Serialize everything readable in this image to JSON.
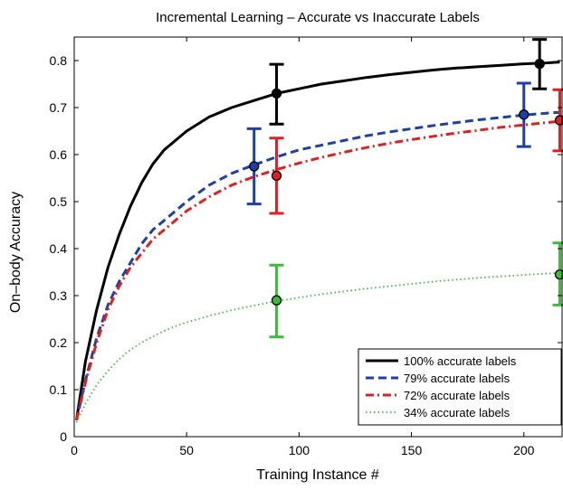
{
  "chart_data": {
    "type": "line",
    "title": "Incremental Learning – Accurate vs Inaccurate Labels",
    "xlabel": "Training Instance #",
    "ylabel": "On–body Accuracy",
    "xlim": [
      0,
      217
    ],
    "ylim": [
      0,
      0.85
    ],
    "xticks": [
      0,
      50,
      100,
      150,
      200
    ],
    "yticks": [
      0,
      0.1,
      0.2,
      0.3,
      0.4,
      0.5,
      0.6,
      0.7,
      0.8
    ],
    "xtick_labels": [
      "0",
      "50",
      "100",
      "150",
      "200"
    ],
    "ytick_labels": [
      "0",
      "0.1",
      "0.2",
      "0.3",
      "0.4",
      "0.5",
      "0.6",
      "0.7",
      "0.8"
    ],
    "grid": false,
    "legend_position": "bottom-right",
    "series": [
      {
        "name": "100% accurate labels",
        "color": "#000000",
        "dash": "solid",
        "curve_x": [
          1,
          5,
          10,
          15,
          20,
          25,
          30,
          35,
          40,
          45,
          50,
          60,
          70,
          80,
          90,
          100,
          110,
          120,
          130,
          140,
          150,
          160,
          170,
          180,
          190,
          200,
          210,
          216
        ],
        "curve_y": [
          0.035,
          0.16,
          0.27,
          0.36,
          0.43,
          0.49,
          0.54,
          0.58,
          0.61,
          0.63,
          0.65,
          0.68,
          0.7,
          0.715,
          0.73,
          0.74,
          0.75,
          0.757,
          0.764,
          0.77,
          0.775,
          0.78,
          0.784,
          0.787,
          0.79,
          0.793,
          0.795,
          0.797
        ],
        "points": [
          {
            "x": 90,
            "y": 0.73,
            "err_low": 0.665,
            "err_high": 0.792
          },
          {
            "x": 207,
            "y": 0.793,
            "err_low": 0.74,
            "err_high": 0.845
          }
        ]
      },
      {
        "name": "79% accurate labels",
        "color": "#1c3fa8",
        "dash": "dashed",
        "curve_x": [
          1,
          5,
          10,
          15,
          20,
          25,
          30,
          35,
          40,
          45,
          50,
          60,
          70,
          80,
          90,
          100,
          110,
          120,
          130,
          140,
          150,
          160,
          170,
          180,
          190,
          200,
          210,
          216
        ],
        "curve_y": [
          0.035,
          0.12,
          0.21,
          0.28,
          0.33,
          0.37,
          0.41,
          0.44,
          0.46,
          0.48,
          0.5,
          0.535,
          0.56,
          0.578,
          0.595,
          0.61,
          0.62,
          0.63,
          0.64,
          0.648,
          0.655,
          0.662,
          0.668,
          0.674,
          0.679,
          0.684,
          0.688,
          0.69
        ],
        "points": [
          {
            "x": 80,
            "y": 0.575,
            "err_low": 0.495,
            "err_high": 0.655
          },
          {
            "x": 200,
            "y": 0.685,
            "err_low": 0.617,
            "err_high": 0.752
          }
        ]
      },
      {
        "name": "72% accurate labels",
        "color": "#e02020",
        "dash": "dashdot",
        "curve_x": [
          1,
          5,
          10,
          15,
          20,
          25,
          30,
          35,
          40,
          45,
          50,
          60,
          70,
          80,
          90,
          100,
          110,
          120,
          130,
          140,
          150,
          160,
          170,
          180,
          190,
          200,
          210,
          216
        ],
        "curve_y": [
          0.035,
          0.115,
          0.2,
          0.27,
          0.32,
          0.36,
          0.39,
          0.42,
          0.44,
          0.46,
          0.48,
          0.51,
          0.535,
          0.553,
          0.568,
          0.582,
          0.594,
          0.605,
          0.615,
          0.624,
          0.632,
          0.639,
          0.646,
          0.652,
          0.658,
          0.663,
          0.668,
          0.671
        ],
        "points": [
          {
            "x": 90,
            "y": 0.555,
            "err_low": 0.475,
            "err_high": 0.635
          },
          {
            "x": 216,
            "y": 0.673,
            "err_low": 0.608,
            "err_high": 0.738
          }
        ]
      },
      {
        "name": "34% accurate labels",
        "color": "#3dbb3d",
        "dash": "dotted",
        "curve_x": [
          1,
          5,
          10,
          15,
          20,
          25,
          30,
          35,
          40,
          45,
          50,
          60,
          70,
          80,
          90,
          100,
          110,
          120,
          130,
          140,
          150,
          160,
          170,
          180,
          190,
          200,
          210,
          216
        ],
        "curve_y": [
          0.03,
          0.07,
          0.11,
          0.14,
          0.165,
          0.185,
          0.2,
          0.213,
          0.225,
          0.235,
          0.243,
          0.257,
          0.269,
          0.279,
          0.288,
          0.296,
          0.303,
          0.309,
          0.315,
          0.32,
          0.325,
          0.33,
          0.334,
          0.338,
          0.341,
          0.344,
          0.347,
          0.348
        ],
        "points": [
          {
            "x": 90,
            "y": 0.29,
            "err_low": 0.212,
            "err_high": 0.365
          },
          {
            "x": 216,
            "y": 0.345,
            "err_low": 0.28,
            "err_high": 0.412
          }
        ]
      }
    ]
  }
}
